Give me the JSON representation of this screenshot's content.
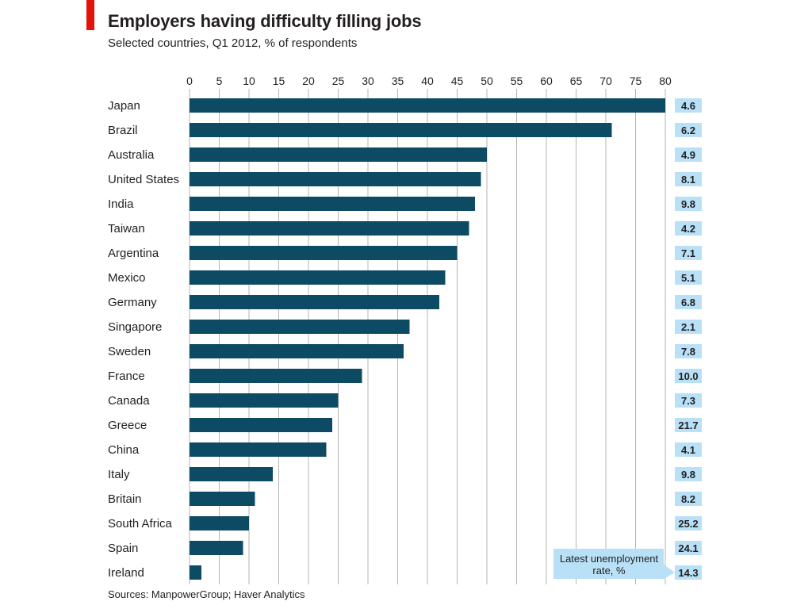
{
  "header": {
    "title": "Employers having difficulty filling jobs",
    "subtitle": "Selected countries, Q1 2012, % of respondents"
  },
  "footer": {
    "source": "Sources: ManpowerGroup; Haver Analytics"
  },
  "colors": {
    "bar": "#0d4a63",
    "label_box": "#b8e0f6",
    "accent": "#e3120b",
    "grid": "#b5b5b5"
  },
  "chart_data": {
    "type": "bar",
    "orientation": "horizontal",
    "title": "Employers having difficulty filling jobs",
    "subtitle": "Selected countries, Q1 2012, % of respondents",
    "xlim": [
      0,
      80
    ],
    "xticks": [
      0,
      5,
      10,
      15,
      20,
      25,
      30,
      35,
      40,
      45,
      50,
      55,
      60,
      65,
      70,
      75,
      80
    ],
    "grid": true,
    "categories": [
      "Japan",
      "Brazil",
      "Australia",
      "United States",
      "India",
      "Taiwan",
      "Argentina",
      "Mexico",
      "Germany",
      "Singapore",
      "Sweden",
      "France",
      "Canada",
      "Greece",
      "China",
      "Italy",
      "Britain",
      "South Africa",
      "Spain",
      "Ireland"
    ],
    "values": [
      80,
      71,
      50,
      49,
      48,
      47,
      45,
      43,
      42,
      37,
      36,
      29,
      25,
      24,
      23,
      14,
      11,
      10,
      9,
      2
    ],
    "side_values": [
      "4.6",
      "6.2",
      "4.9",
      "8.1",
      "9.8",
      "4.2",
      "7.1",
      "5.1",
      "6.8",
      "2.1",
      "7.8",
      "10.0",
      "7.3",
      "21.7",
      "4.1",
      "9.8",
      "8.2",
      "25.2",
      "24.1",
      "14.3"
    ],
    "side_label": "Latest unemployment rate, %"
  }
}
